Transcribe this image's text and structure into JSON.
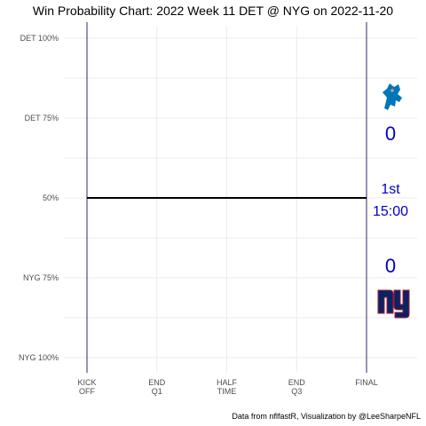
{
  "chart_data": {
    "type": "line",
    "title": "Win Probability Chart: 2022 Week 11 DET @ NYG on 2022-11-20",
    "caption": "Data from nflfastR, Visualization by @LeeSharpeNFL",
    "x_tick_labels": [
      [
        "KICK",
        "OFF"
      ],
      [
        "END",
        "Q1"
      ],
      [
        "HALF",
        "TIME"
      ],
      [
        "END",
        "Q3"
      ],
      [
        "FINAL"
      ]
    ],
    "y_tick_labels": [
      "DET 100%",
      "DET 75%",
      "50%",
      "NYG 75%",
      "NYG 100%"
    ],
    "y_tick_values": [
      1.0,
      0.75,
      0.5,
      0.25,
      0.0
    ],
    "xlim": [
      0,
      3600
    ],
    "ylim": [
      0,
      1
    ],
    "grid": true,
    "series": [
      {
        "x": [
          0,
          3600
        ],
        "y": [
          0.5,
          0.5
        ],
        "color": "#000000"
      }
    ],
    "away_team": {
      "abbr": "DET",
      "score": "0",
      "color": "#0076b6"
    },
    "home_team": {
      "abbr": "NYG",
      "score": "0",
      "color": "#0b2265",
      "accent": "#a71930"
    },
    "game_clock": {
      "quarter": "1st",
      "time": "15:00"
    },
    "colors": {
      "score_text": "#0000cd",
      "period_lines": "#2b2b6b",
      "grid": "#ebebeb"
    }
  }
}
